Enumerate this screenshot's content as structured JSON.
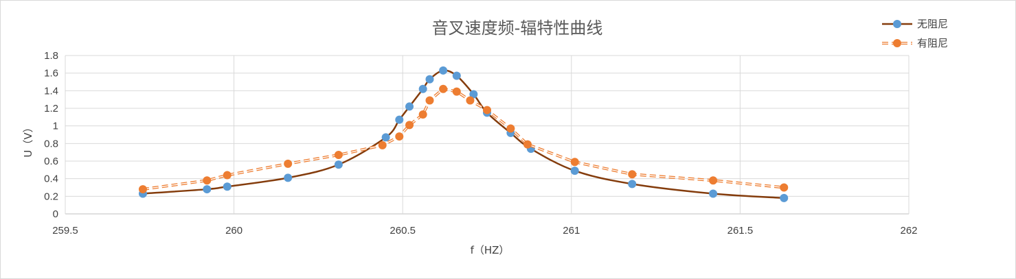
{
  "chart_data": {
    "type": "line",
    "title": "音叉速度频-辐特性曲线",
    "xlabel": "f（HZ）",
    "ylabel": "U（V）",
    "xlim": [
      259.5,
      262
    ],
    "ylim": [
      0,
      1.8
    ],
    "xticks": [
      "259.5",
      "260",
      "260.5",
      "261",
      "261.5",
      "262"
    ],
    "yticks": [
      "0",
      "0.2",
      "0.4",
      "0.6",
      "0.8",
      "1",
      "1.2",
      "1.4",
      "1.6",
      "1.8"
    ],
    "grid": true,
    "legend_position": "top-right",
    "series": [
      {
        "name": "无阻尼",
        "color": "#843C0C",
        "marker_color": "#5B9BD5",
        "line_style": "solid",
        "smooth": true,
        "x": [
          259.73,
          259.92,
          259.98,
          260.16,
          260.31,
          260.45,
          260.49,
          260.52,
          260.56,
          260.58,
          260.62,
          260.66,
          260.71,
          260.75,
          260.82,
          260.88,
          261.01,
          261.18,
          261.42,
          261.63
        ],
        "y": [
          0.23,
          0.28,
          0.31,
          0.41,
          0.56,
          0.87,
          1.07,
          1.22,
          1.42,
          1.53,
          1.63,
          1.57,
          1.36,
          1.15,
          0.92,
          0.74,
          0.49,
          0.34,
          0.23,
          0.18
        ]
      },
      {
        "name": "有阻尼",
        "color": "#ED7D31",
        "marker_color": "#ED7D31",
        "line_style": "dashed",
        "smooth": false,
        "x": [
          259.73,
          259.92,
          259.98,
          260.16,
          260.31,
          260.44,
          260.49,
          260.52,
          260.56,
          260.58,
          260.62,
          260.66,
          260.7,
          260.75,
          260.82,
          260.87,
          261.01,
          261.18,
          261.42,
          261.63
        ],
        "y": [
          0.28,
          0.38,
          0.44,
          0.57,
          0.67,
          0.78,
          0.88,
          1.01,
          1.13,
          1.29,
          1.42,
          1.39,
          1.29,
          1.18,
          0.97,
          0.79,
          0.59,
          0.45,
          0.38,
          0.3
        ]
      }
    ]
  }
}
